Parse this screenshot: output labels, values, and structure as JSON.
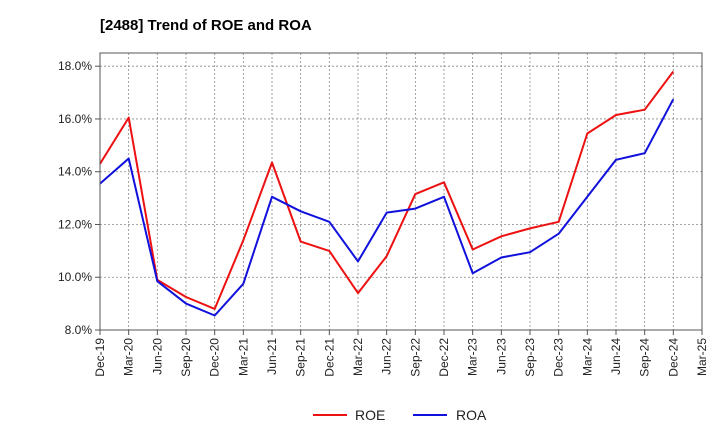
{
  "chart_data": {
    "type": "line",
    "title": "[2488]  Trend of ROE and ROA",
    "xlabel": "",
    "ylabel": "",
    "categories": [
      "Dec-19",
      "Mar-20",
      "Jun-20",
      "Sep-20",
      "Dec-20",
      "Mar-21",
      "Jun-21",
      "Sep-21",
      "Dec-21",
      "Mar-22",
      "Jun-22",
      "Sep-22",
      "Dec-22",
      "Mar-23",
      "Jun-23",
      "Sep-23",
      "Dec-23",
      "Mar-24",
      "Jun-24",
      "Sep-24",
      "Dec-24",
      "Mar-25"
    ],
    "ylim": [
      8.0,
      18.5
    ],
    "yticks": [
      8.0,
      10.0,
      12.0,
      14.0,
      16.0,
      18.0
    ],
    "ytick_labels": [
      "8.0%",
      "10.0%",
      "12.0%",
      "14.0%",
      "16.0%",
      "18.0%"
    ],
    "grid": true,
    "legend_position": "bottom-center",
    "series": [
      {
        "name": "ROE",
        "color": "#ee1111",
        "values": [
          14.3,
          16.05,
          9.9,
          9.25,
          8.8,
          11.4,
          14.35,
          11.35,
          11.0,
          9.4,
          10.8,
          13.15,
          13.6,
          11.05,
          11.55,
          11.85,
          12.1,
          15.45,
          16.15,
          16.35,
          17.8,
          null
        ]
      },
      {
        "name": "ROA",
        "color": "#1111dd",
        "values": [
          13.55,
          14.5,
          9.85,
          9.0,
          8.55,
          9.75,
          13.05,
          12.5,
          12.1,
          10.6,
          12.45,
          12.6,
          13.05,
          10.15,
          10.75,
          10.95,
          11.65,
          13.05,
          14.45,
          14.7,
          16.75,
          null
        ]
      }
    ]
  }
}
